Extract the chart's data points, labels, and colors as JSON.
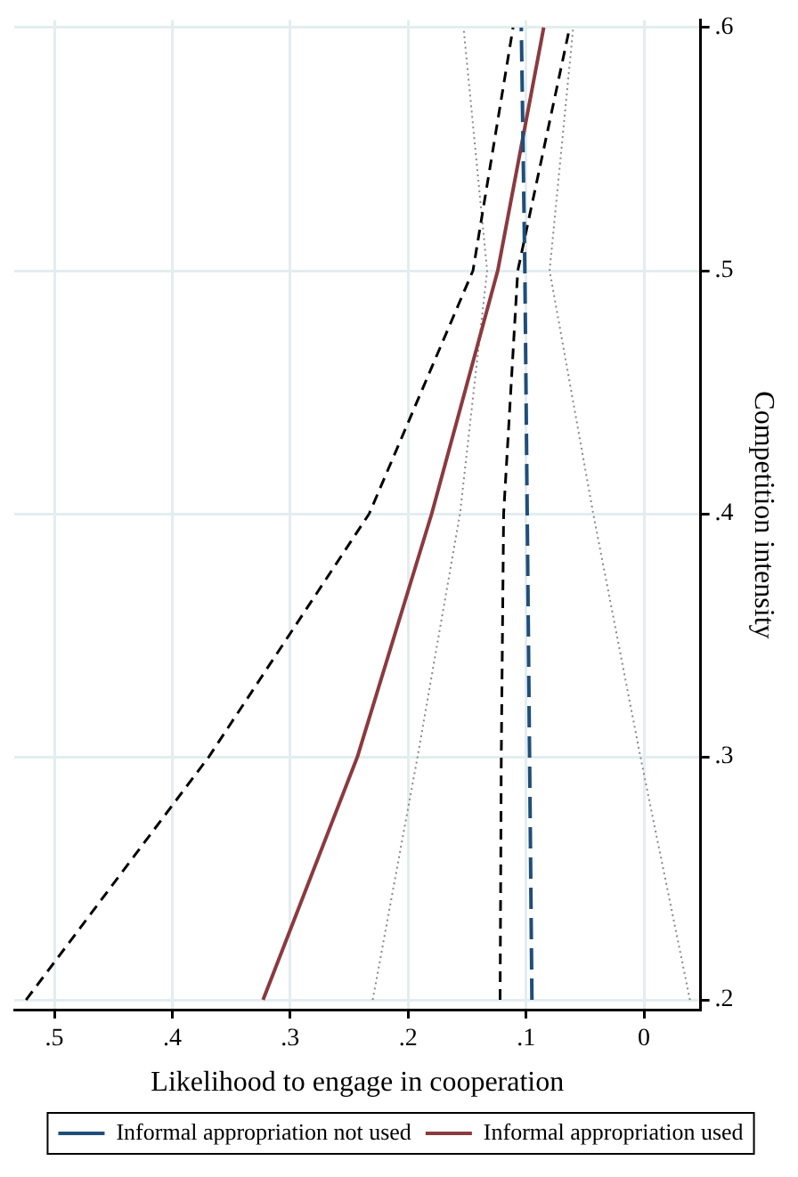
{
  "chart_data": {
    "type": "line",
    "xlabel": "Likelihood to engage in cooperation",
    "ylabel": "Competition intensity",
    "series": [
      {
        "name": "Informal appropriation not used",
        "color": "#1f4e79",
        "line_style": "dashed",
        "x": [
          0.095,
          0.097,
          0.099,
          0.101,
          0.104
        ],
        "values": [
          0.2,
          0.3,
          0.4,
          0.5,
          0.6
        ]
      },
      {
        "name": "Informal appropriation used",
        "color": "#8b3a3f",
        "line_style": "solid",
        "x": [
          0.323,
          0.243,
          0.18,
          0.124,
          0.085
        ],
        "values": [
          0.2,
          0.3,
          0.4,
          0.5,
          0.6
        ]
      },
      {
        "color": "#000000",
        "line_style": "dashed",
        "x": [
          0.524,
          0.369,
          0.233,
          0.145,
          0.111
        ],
        "values": [
          0.2,
          0.3,
          0.4,
          0.5,
          0.6
        ]
      },
      {
        "color": "#000000",
        "line_style": "dashed",
        "x": [
          0.122,
          0.121,
          0.119,
          0.107,
          0.063
        ],
        "values": [
          0.2,
          0.3,
          0.4,
          0.5,
          0.6
        ]
      },
      {
        "color": "#888888",
        "line_style": "dotted",
        "x": [
          0.23,
          0.192,
          0.156,
          0.133,
          0.153
        ],
        "values": [
          0.2,
          0.3,
          0.4,
          0.5,
          0.6
        ]
      },
      {
        "color": "#888888",
        "line_style": "dotted",
        "x": [
          -0.039,
          0.003,
          0.043,
          0.08,
          0.06
        ],
        "values": [
          0.2,
          0.3,
          0.4,
          0.5,
          0.6
        ]
      }
    ],
    "ylim": [
      0.196,
      0.603
    ],
    "yticks": [
      {
        "value": 0.2,
        "label": ".2"
      },
      {
        "value": 0.3,
        "label": ".3"
      },
      {
        "value": 0.4,
        "label": ".4"
      },
      {
        "value": 0.5,
        "label": ".5"
      },
      {
        "value": 0.6,
        "label": ".6"
      }
    ],
    "xlim": [
      0.534,
      -0.048
    ],
    "xticks": [
      0,
      {
        "value": 0.1,
        "label": ".1"
      },
      {
        "value": 0.2,
        "label": ".2"
      },
      {
        "value": 0.3,
        "label": ".3"
      },
      {
        "value": 0.4,
        "label": ".4"
      },
      {
        "value": 0.5,
        "label": ".5"
      }
    ],
    "grid": true,
    "legend": "bottom",
    "marker": "none"
  }
}
